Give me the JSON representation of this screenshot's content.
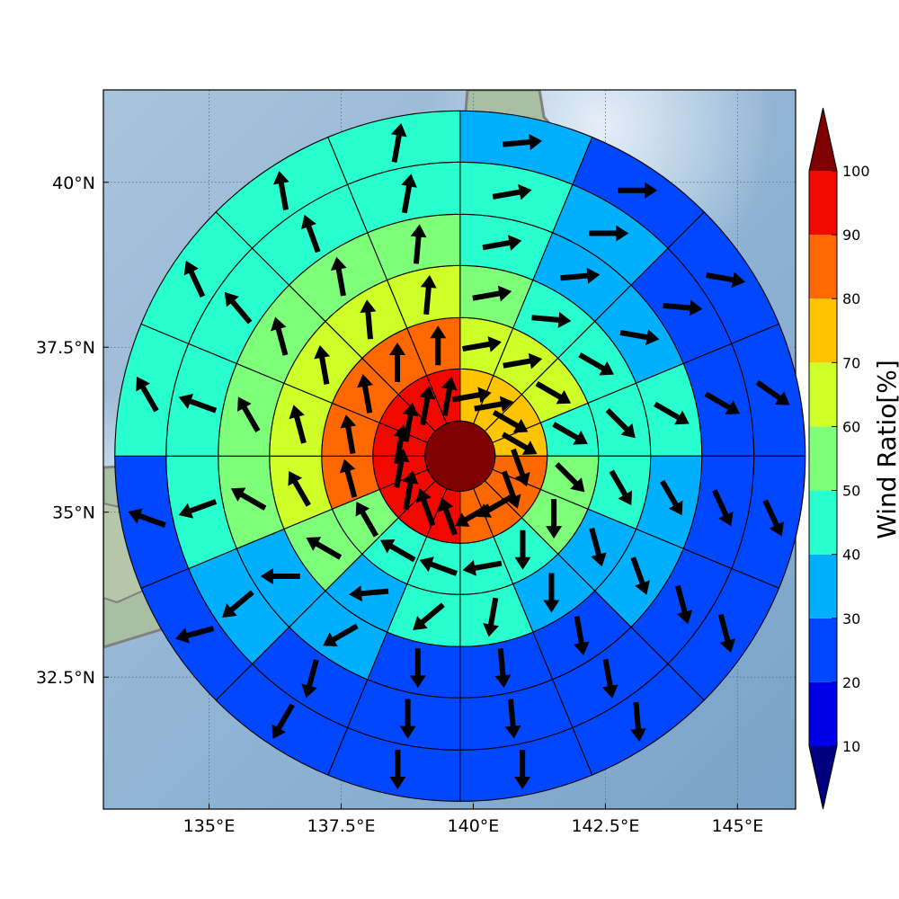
{
  "chart_data": {
    "type": "polar-grid-map",
    "title": "",
    "map": {
      "lon_range": [
        133.0,
        146.1
      ],
      "lat_range": [
        30.5,
        41.4
      ],
      "lon_ticks": [
        {
          "value": 135.0,
          "label": "135°E"
        },
        {
          "value": 137.5,
          "label": "137.5°E"
        },
        {
          "value": 140.0,
          "label": "140°E"
        },
        {
          "value": 142.5,
          "label": "142.5°E"
        },
        {
          "value": 145.0,
          "label": "145°E"
        }
      ],
      "lat_ticks": [
        {
          "value": 40.0,
          "label": "40°N"
        },
        {
          "value": 37.5,
          "label": "37.5°N"
        },
        {
          "value": 35.0,
          "label": "35°N"
        },
        {
          "value": 32.5,
          "label": "32.5°N"
        }
      ],
      "grid": true,
      "center": {
        "lon": 139.75,
        "lat": 35.85
      }
    },
    "colorbar": {
      "label": "Wind Ratio[%]",
      "ticks": [
        10,
        20,
        30,
        40,
        50,
        60,
        70,
        80,
        90,
        100
      ],
      "levels": [
        {
          "min": 0,
          "max": 10,
          "color": "#00007f"
        },
        {
          "min": 10,
          "max": 20,
          "color": "#0000e6"
        },
        {
          "min": 20,
          "max": 30,
          "color": "#0047ff"
        },
        {
          "min": 30,
          "max": 40,
          "color": "#00b0ff"
        },
        {
          "min": 40,
          "max": 50,
          "color": "#29ffce"
        },
        {
          "min": 50,
          "max": 60,
          "color": "#7dff7a"
        },
        {
          "min": 60,
          "max": 70,
          "color": "#ceff29"
        },
        {
          "min": 70,
          "max": 80,
          "color": "#ffc400"
        },
        {
          "min": 80,
          "max": 90,
          "color": "#ff6800"
        },
        {
          "min": 90,
          "max": 100,
          "color": "#f10800"
        },
        {
          "min": 100,
          "max": 110,
          "color": "#7f0000"
        }
      ],
      "extend": "both"
    },
    "sectors_per_ring": 16,
    "sector_order": "clockwise from north, starting at the sector just east of north",
    "center_disk": {
      "value": 105
    },
    "rings": [
      {
        "ring": 1,
        "values": [
          75,
          75,
          75,
          75,
          85,
          85,
          85,
          85,
          95,
          95,
          95,
          95,
          95,
          95,
          95,
          95
        ],
        "wind_dir_deg": [
          80,
          80,
          120,
          120,
          160,
          160,
          240,
          240,
          340,
          340,
          10,
          10,
          10,
          10,
          10,
          10
        ]
      },
      {
        "ring": 2,
        "values": [
          65,
          65,
          65,
          45,
          55,
          55,
          45,
          45,
          45,
          45,
          55,
          85,
          85,
          85,
          85,
          85
        ],
        "wind_dir_deg": [
          80,
          80,
          120,
          120,
          135,
          180,
          180,
          260,
          290,
          300,
          330,
          345,
          350,
          350,
          0,
          0
        ]
      },
      {
        "ring": 3,
        "values": [
          55,
          45,
          45,
          45,
          45,
          35,
          35,
          45,
          45,
          35,
          55,
          65,
          65,
          65,
          65,
          65
        ],
        "wind_dir_deg": [
          80,
          95,
          120,
          135,
          150,
          165,
          180,
          190,
          230,
          265,
          300,
          330,
          345,
          350,
          355,
          5
        ]
      },
      {
        "ring": 4,
        "values": [
          45,
          35,
          35,
          45,
          35,
          35,
          25,
          25,
          25,
          35,
          35,
          55,
          55,
          55,
          55,
          55
        ],
        "wind_dir_deg": [
          80,
          85,
          100,
          120,
          150,
          160,
          170,
          175,
          180,
          240,
          270,
          300,
          330,
          345,
          350,
          5
        ]
      },
      {
        "ring": 5,
        "values": [
          45,
          35,
          25,
          25,
          25,
          25,
          25,
          25,
          25,
          25,
          35,
          45,
          45,
          45,
          45,
          45
        ],
        "wind_dir_deg": [
          80,
          90,
          95,
          120,
          155,
          165,
          170,
          175,
          180,
          195,
          230,
          250,
          290,
          320,
          340,
          10
        ]
      },
      {
        "ring": 6,
        "values": [
          35,
          25,
          25,
          25,
          25,
          25,
          25,
          25,
          25,
          25,
          25,
          25,
          45,
          45,
          45,
          45
        ],
        "wind_dir_deg": [
          85,
          90,
          100,
          125,
          155,
          165,
          175,
          180,
          180,
          210,
          255,
          290,
          330,
          335,
          350,
          10
        ]
      }
    ]
  }
}
